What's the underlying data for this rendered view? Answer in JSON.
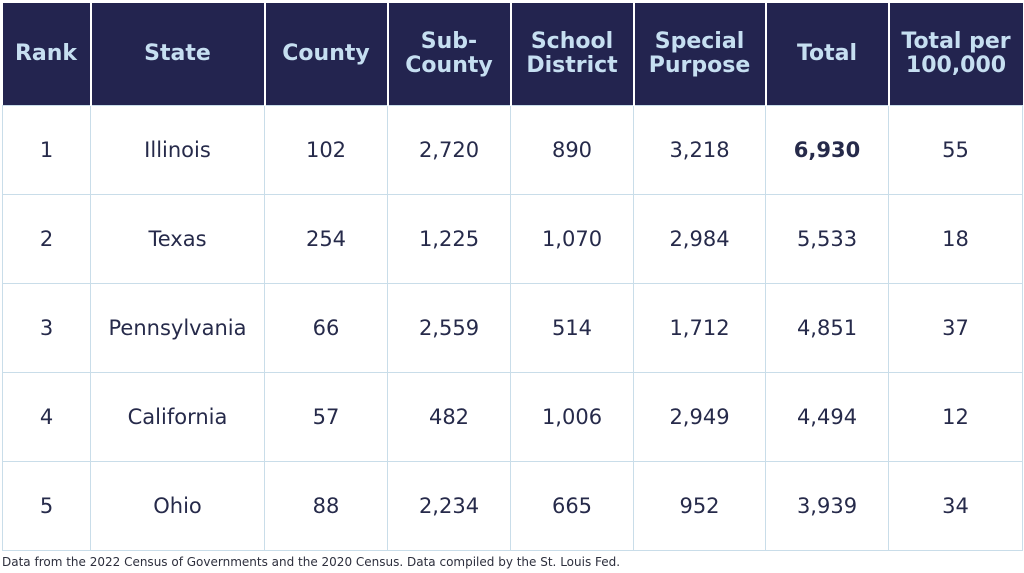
{
  "chart_data": {
    "type": "table",
    "columns": [
      "Rank",
      "State",
      "County",
      "Sub-County",
      "School District",
      "Special Purpose",
      "Total",
      "Total per 100,000"
    ],
    "column_lines": [
      [
        "Rank"
      ],
      [
        "State"
      ],
      [
        "County"
      ],
      [
        "Sub-",
        "County"
      ],
      [
        "School",
        "District"
      ],
      [
        "Special",
        "Purpose"
      ],
      [
        "Total"
      ],
      [
        "Total per",
        "100,000"
      ]
    ],
    "rows": [
      [
        "1",
        "Illinois",
        "102",
        "2,720",
        "890",
        "3,218",
        "6,930",
        "55"
      ],
      [
        "2",
        "Texas",
        "254",
        "1,225",
        "1,070",
        "2,984",
        "5,533",
        "18"
      ],
      [
        "3",
        "Pennsylvania",
        "66",
        "2,559",
        "514",
        "1,712",
        "4,851",
        "37"
      ],
      [
        "4",
        "California",
        "57",
        "482",
        "1,006",
        "2,949",
        "4,494",
        "12"
      ],
      [
        "5",
        "Ohio",
        "88",
        "2,234",
        "665",
        "952",
        "3,939",
        "34"
      ]
    ],
    "emphasis": [
      {
        "row": 0,
        "col": 6,
        "style": "bold"
      }
    ],
    "header_bg": "#23244f",
    "header_text_color": "#c6dff1",
    "border_color": "#c9dde9"
  },
  "footnote": "Data from the 2022 Census of Governments and the 2020 Census. Data compiled by the St. Louis Fed."
}
